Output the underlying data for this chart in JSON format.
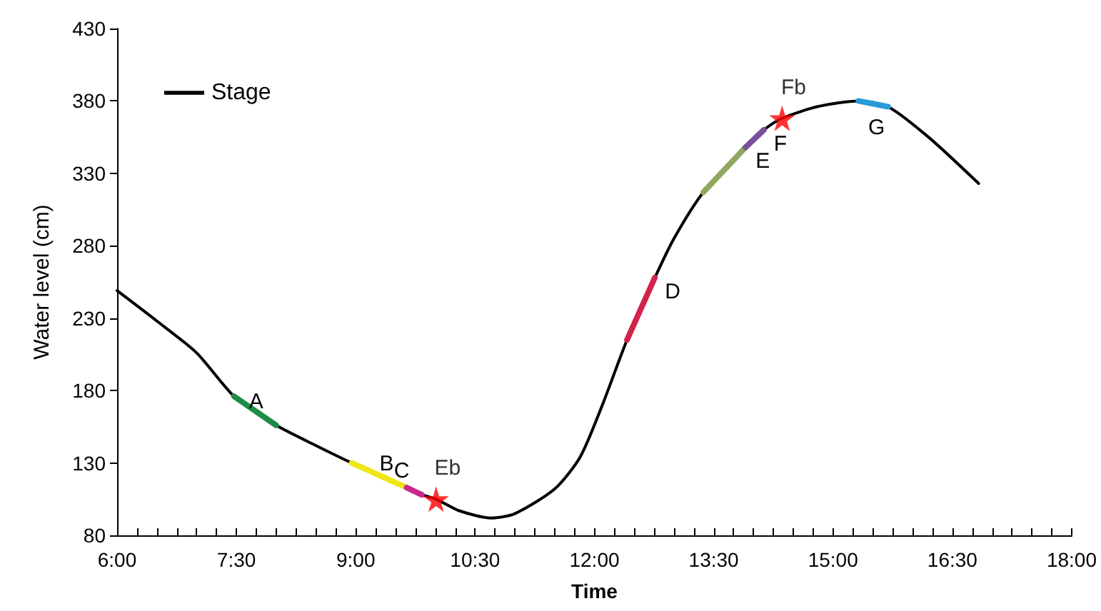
{
  "chart_data": {
    "type": "line",
    "xlabel": "Time",
    "ylabel": "Water level (cm)",
    "legend": "top left",
    "grid": false,
    "marker": "none",
    "line_style": "solid",
    "xlim": [
      6,
      18
    ],
    "ylim": [
      80,
      430
    ],
    "xticks": [
      {
        "value": 6,
        "label": "6:00"
      },
      {
        "value": 6.25,
        "label": null
      },
      {
        "value": 6.5,
        "label": null
      },
      {
        "value": 6.75,
        "label": null
      },
      {
        "value": 7,
        "label": null
      },
      {
        "value": 7.25,
        "label": null
      },
      {
        "value": 7.5,
        "label": "7:30"
      },
      {
        "value": 7.75,
        "label": null
      },
      {
        "value": 8,
        "label": null
      },
      {
        "value": 8.25,
        "label": null
      },
      {
        "value": 8.5,
        "label": null
      },
      {
        "value": 8.75,
        "label": null
      },
      {
        "value": 9,
        "label": "9:00"
      },
      {
        "value": 9.25,
        "label": null
      },
      {
        "value": 9.5,
        "label": null
      },
      {
        "value": 9.75,
        "label": null
      },
      {
        "value": 10,
        "label": null
      },
      {
        "value": 10.25,
        "label": null
      },
      {
        "value": 10.5,
        "label": "10:30"
      },
      {
        "value": 10.75,
        "label": null
      },
      {
        "value": 11,
        "label": null
      },
      {
        "value": 11.25,
        "label": null
      },
      {
        "value": 11.5,
        "label": null
      },
      {
        "value": 11.75,
        "label": null
      },
      {
        "value": 12,
        "label": "12:00"
      },
      {
        "value": 12.25,
        "label": null
      },
      {
        "value": 12.5,
        "label": null
      },
      {
        "value": 12.75,
        "label": null
      },
      {
        "value": 13,
        "label": null
      },
      {
        "value": 13.25,
        "label": null
      },
      {
        "value": 13.5,
        "label": "13:30"
      },
      {
        "value": 13.75,
        "label": null
      },
      {
        "value": 14,
        "label": null
      },
      {
        "value": 14.25,
        "label": null
      },
      {
        "value": 14.5,
        "label": null
      },
      {
        "value": 14.75,
        "label": null
      },
      {
        "value": 15,
        "label": "15:00"
      },
      {
        "value": 15.25,
        "label": null
      },
      {
        "value": 15.5,
        "label": null
      },
      {
        "value": 15.75,
        "label": null
      },
      {
        "value": 16,
        "label": null
      },
      {
        "value": 16.25,
        "label": null
      },
      {
        "value": 16.5,
        "label": "16:30"
      },
      {
        "value": 16.75,
        "label": null
      },
      {
        "value": 17,
        "label": null
      },
      {
        "value": 17.25,
        "label": null
      },
      {
        "value": 17.5,
        "label": null
      },
      {
        "value": 17.75,
        "label": null
      },
      {
        "value": 18,
        "label": "18:00"
      }
    ],
    "yticks": [
      80,
      130,
      180,
      230,
      280,
      330,
      380,
      430
    ],
    "series": [
      {
        "name": "Stage",
        "color": "#000000",
        "x": [
          6,
          6.5,
          7,
          7.47,
          8.0,
          8.5,
          8.95,
          9.64,
          9.83,
          10.01,
          10.3,
          10.7,
          11,
          11.5,
          11.82,
          12.1,
          12.41,
          12.76,
          13.0,
          13.37,
          13.9,
          14.13,
          14.36,
          14.8,
          15.32,
          15.69,
          16.2,
          16.83
        ],
        "values": [
          249,
          228,
          206,
          176,
          156,
          142,
          130,
          113,
          108,
          105,
          97,
          92,
          95,
          112,
          134,
          170,
          215,
          258,
          285,
          317,
          348,
          360,
          368,
          376,
          380,
          376,
          355,
          323
        ]
      },
      {
        "name": "A",
        "color": "#1e8c46",
        "x": [
          7.47,
          8.0
        ],
        "values": [
          176,
          156
        ]
      },
      {
        "name": "B",
        "color": "#f0e614",
        "x": [
          8.95,
          9.64
        ],
        "values": [
          130,
          113
        ]
      },
      {
        "name": "C",
        "color": "#c8288c",
        "x": [
          9.64,
          9.83
        ],
        "values": [
          113,
          108
        ]
      },
      {
        "name": "D",
        "color": "#d2234b",
        "x": [
          12.41,
          12.76
        ],
        "values": [
          215,
          258
        ]
      },
      {
        "name": "E",
        "color": "#8fa860",
        "x": [
          13.37,
          13.9
        ],
        "values": [
          317,
          348
        ]
      },
      {
        "name": "F",
        "color": "#7a4f9e",
        "x": [
          13.9,
          14.13
        ],
        "values": [
          348,
          360
        ]
      },
      {
        "name": "G",
        "color": "#2a9ad8",
        "x": [
          15.32,
          15.69
        ],
        "values": [
          380,
          376
        ]
      },
      {
        "name": "Eb",
        "type": "scatter",
        "marker": "star",
        "color": "#ff0000",
        "x": [
          10.01
        ],
        "values": [
          105
        ]
      },
      {
        "name": "Fb",
        "type": "scatter",
        "marker": "star",
        "color": "#ff0000",
        "x": [
          14.36
        ],
        "values": [
          368
        ]
      }
    ]
  }
}
